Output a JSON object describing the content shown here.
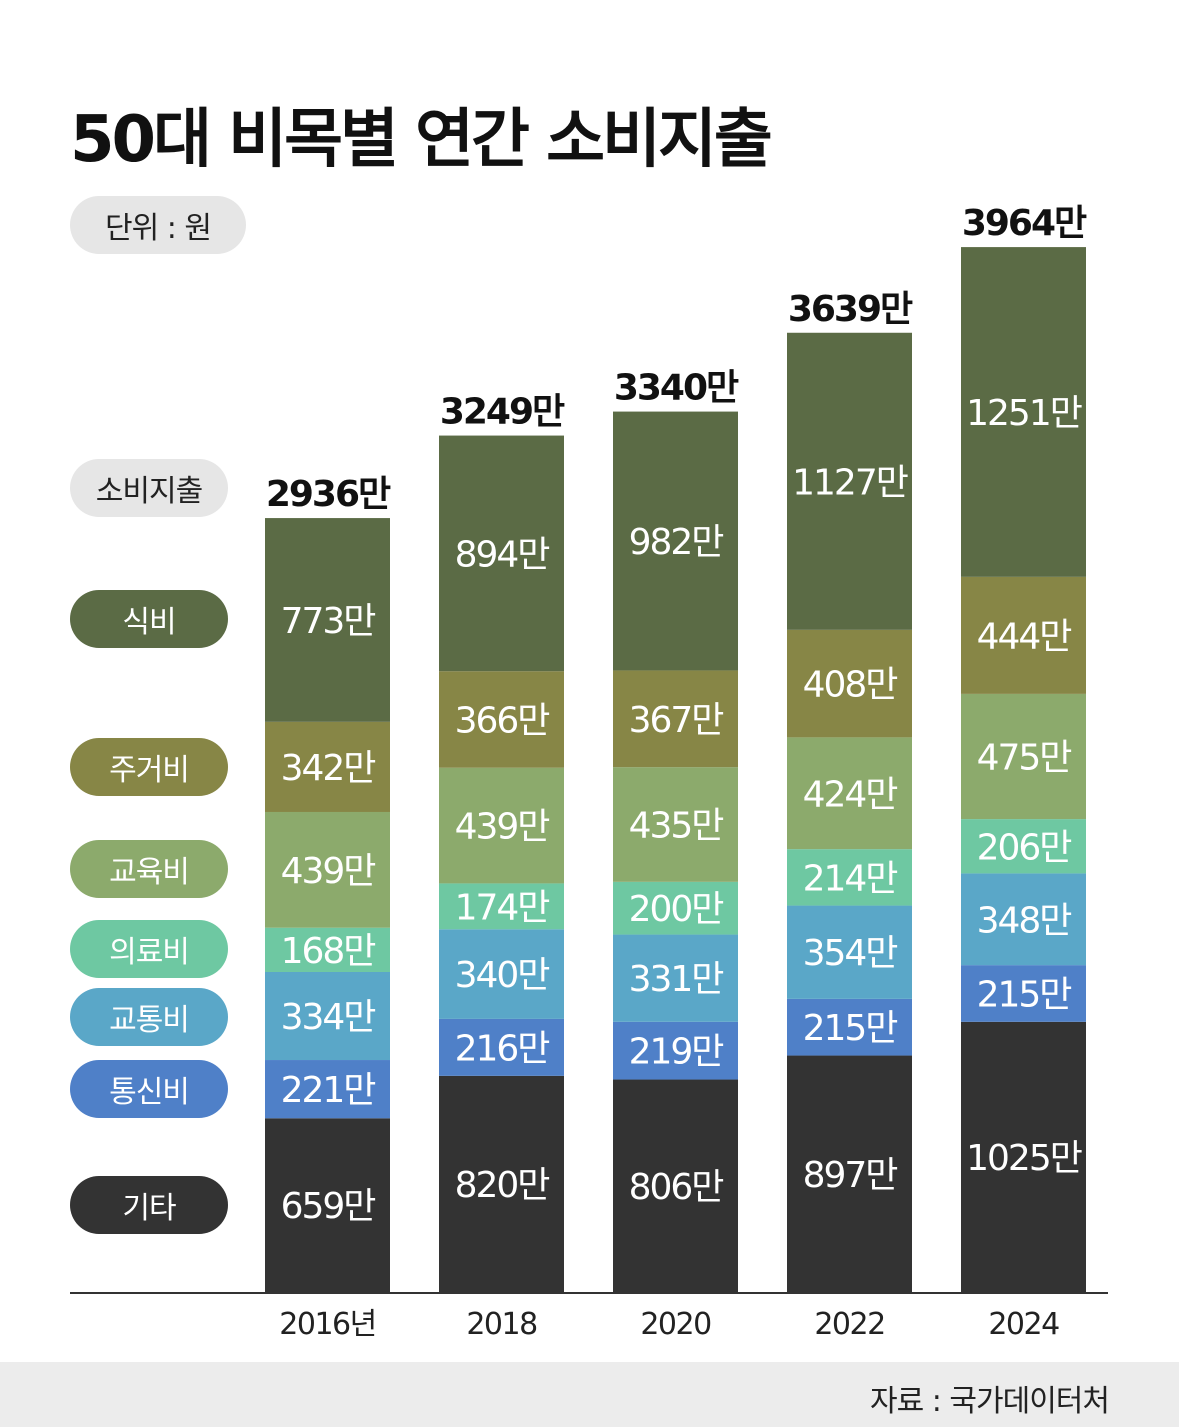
{
  "title": "50대 비목별 연간 소비지출",
  "unit_label": "단위 : 원",
  "legend": {
    "total": "소비지출",
    "items": [
      "식비",
      "주거비",
      "교육비",
      "의료비",
      "교통비",
      "통신비",
      "기타"
    ]
  },
  "source": "자료 : 국가데이터처",
  "colors": {
    "식비": "#5b6b45",
    "주거비": "#878646",
    "교육비": "#8caa6c",
    "의료비": "#6ec8a2",
    "교통비": "#5aa7c8",
    "통신비": "#4f80c8",
    "기타": "#333333",
    "total_pill": "#e6e6e6",
    "axis": "#333333",
    "footer": "#ececec"
  },
  "chart_data": {
    "type": "bar",
    "stacked": true,
    "categories": [
      "2016년",
      "2018",
      "2020",
      "2022",
      "2024"
    ],
    "value_suffix": "만",
    "totals": [
      2936,
      3249,
      3340,
      3639,
      3964
    ],
    "series": [
      {
        "name": "기타",
        "values": [
          659,
          820,
          806,
          897,
          1025
        ]
      },
      {
        "name": "통신비",
        "values": [
          221,
          216,
          219,
          215,
          215
        ]
      },
      {
        "name": "교통비",
        "values": [
          334,
          340,
          331,
          354,
          348
        ]
      },
      {
        "name": "의료비",
        "values": [
          168,
          174,
          200,
          214,
          206
        ]
      },
      {
        "name": "교육비",
        "values": [
          439,
          439,
          435,
          424,
          475
        ]
      },
      {
        "name": "주거비",
        "values": [
          342,
          366,
          367,
          408,
          444
        ]
      },
      {
        "name": "식비",
        "values": [
          773,
          894,
          982,
          1127,
          1251
        ]
      }
    ],
    "ylim": [
      0,
      4000
    ],
    "grid": false
  }
}
